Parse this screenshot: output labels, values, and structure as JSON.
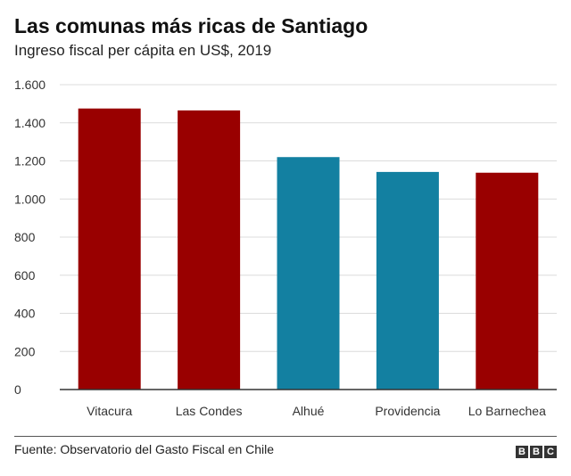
{
  "chart_data": {
    "type": "bar",
    "title": "Las comunas más ricas de Santiago",
    "subtitle": "Ingreso fiscal per cápita en US$, 2019",
    "categories": [
      "Vitacura",
      "Las Condes",
      "Alhué",
      "Providencia",
      "Lo Barnechea"
    ],
    "values": [
      1475,
      1465,
      1220,
      1142,
      1138
    ],
    "colors": [
      "#990000",
      "#990000",
      "#1380A1",
      "#1380A1",
      "#990000"
    ],
    "ylim": [
      0,
      1600
    ],
    "yticks": [
      0,
      200,
      400,
      600,
      800,
      1000,
      1200,
      1400,
      1600
    ],
    "ytick_labels": [
      "0",
      "200",
      "400",
      "600",
      "800",
      "1.000",
      "1.200",
      "1.400",
      "1.600"
    ],
    "xlabel": "",
    "ylabel": "",
    "grid": true
  },
  "footer": {
    "source": "Fuente: Observatorio del Gasto Fiscal en Chile",
    "logo_letters": [
      "B",
      "B",
      "C"
    ]
  }
}
